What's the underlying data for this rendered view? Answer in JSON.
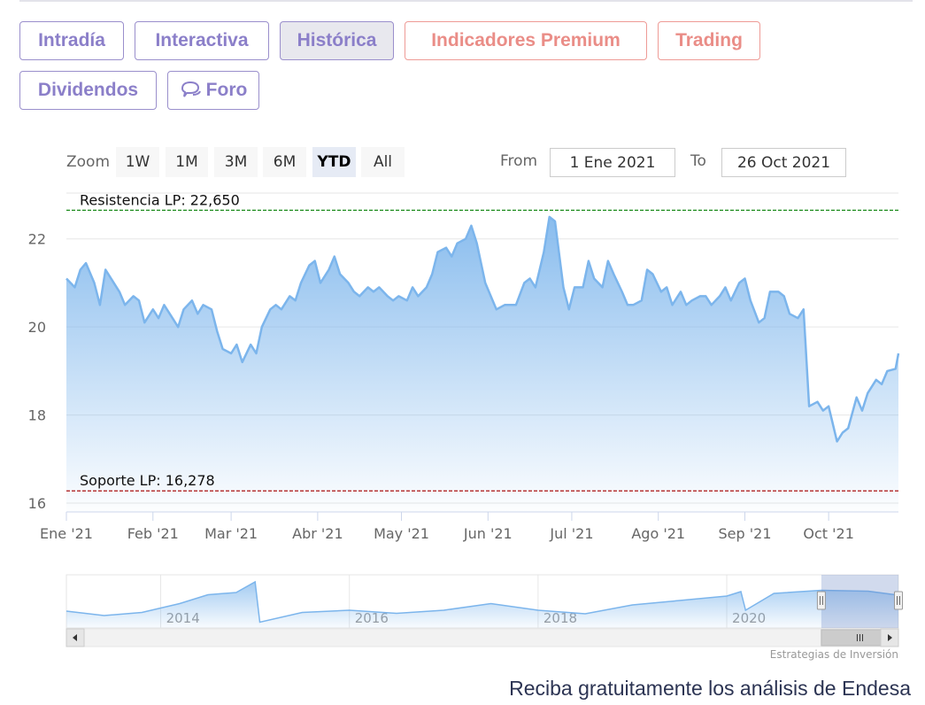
{
  "tabs": {
    "intradia": "Intradía",
    "interactiva": "Interactiva",
    "historica": "Histórica",
    "premium": "Indicadores Premium",
    "trading": "Trading",
    "dividendos": "Dividendos",
    "foro": "Foro"
  },
  "zoom": {
    "label": "Zoom",
    "buttons": [
      "1W",
      "1M",
      "3M",
      "6M",
      "YTD",
      "All"
    ],
    "active": "YTD"
  },
  "range": {
    "from_label": "From",
    "from_value": "1 Ene 2021",
    "to_label": "To",
    "to_value": "26 Oct 2021"
  },
  "credits": "Estrategias de Inversión",
  "footer": "Reciba gratuitamente los análisis de Endesa",
  "colors": {
    "series": "#7cb5ec",
    "resistance": "#1a8a1a",
    "support": "#aa1111",
    "tab_purple": "#8b7fc9",
    "tab_coral": "#ea8d87"
  },
  "chart_data": {
    "type": "area",
    "title": "",
    "xlabel": "",
    "ylabel": "",
    "ylim": [
      15.8,
      23.0
    ],
    "yticks": [
      16,
      18,
      20,
      22
    ],
    "xlim": [
      "2021-01-01",
      "2021-10-26"
    ],
    "xticks": [
      {
        "date": "2021-01-01",
        "label": "Ene '21"
      },
      {
        "date": "2021-02-01",
        "label": "Feb '21"
      },
      {
        "date": "2021-03-01",
        "label": "Mar '21"
      },
      {
        "date": "2021-04-01",
        "label": "Abr '21"
      },
      {
        "date": "2021-05-01",
        "label": "May '21"
      },
      {
        "date": "2021-06-01",
        "label": "Jun '21"
      },
      {
        "date": "2021-07-01",
        "label": "Jul '21"
      },
      {
        "date": "2021-08-01",
        "label": "Ago '21"
      },
      {
        "date": "2021-09-01",
        "label": "Sep '21"
      },
      {
        "date": "2021-10-01",
        "label": "Oct '21"
      }
    ],
    "grid": true,
    "legend": "none",
    "plot_lines": [
      {
        "label": "Resistencia LP: 22,650",
        "value": 22.65,
        "style": "dashed",
        "color": "#1a8a1a"
      },
      {
        "label": "Soporte LP: 16,278",
        "value": 16.278,
        "style": "dashed",
        "color": "#aa1111"
      }
    ],
    "series": [
      {
        "x": [
          "2021-01-01",
          "2021-01-04",
          "2021-01-06",
          "2021-01-08",
          "2021-01-11",
          "2021-01-13",
          "2021-01-15",
          "2021-01-18",
          "2021-01-20",
          "2021-01-22",
          "2021-01-25",
          "2021-01-27",
          "2021-01-29",
          "2021-02-01",
          "2021-02-03",
          "2021-02-05",
          "2021-02-08",
          "2021-02-10",
          "2021-02-12",
          "2021-02-15",
          "2021-02-17",
          "2021-02-19",
          "2021-02-22",
          "2021-02-24",
          "2021-02-26",
          "2021-03-01",
          "2021-03-03",
          "2021-03-05",
          "2021-03-08",
          "2021-03-10",
          "2021-03-12",
          "2021-03-15",
          "2021-03-17",
          "2021-03-19",
          "2021-03-22",
          "2021-03-24",
          "2021-03-26",
          "2021-03-29",
          "2021-03-31",
          "2021-04-02",
          "2021-04-05",
          "2021-04-07",
          "2021-04-09",
          "2021-04-12",
          "2021-04-14",
          "2021-04-16",
          "2021-04-19",
          "2021-04-21",
          "2021-04-23",
          "2021-04-26",
          "2021-04-28",
          "2021-04-30",
          "2021-05-03",
          "2021-05-05",
          "2021-05-07",
          "2021-05-10",
          "2021-05-12",
          "2021-05-14",
          "2021-05-17",
          "2021-05-19",
          "2021-05-21",
          "2021-05-24",
          "2021-05-26",
          "2021-05-28",
          "2021-05-31",
          "2021-06-02",
          "2021-06-04",
          "2021-06-07",
          "2021-06-09",
          "2021-06-11",
          "2021-06-14",
          "2021-06-16",
          "2021-06-18",
          "2021-06-21",
          "2021-06-23",
          "2021-06-25",
          "2021-06-28",
          "2021-06-30",
          "2021-07-02",
          "2021-07-05",
          "2021-07-07",
          "2021-07-09",
          "2021-07-12",
          "2021-07-14",
          "2021-07-16",
          "2021-07-19",
          "2021-07-21",
          "2021-07-23",
          "2021-07-26",
          "2021-07-28",
          "2021-07-30",
          "2021-08-02",
          "2021-08-04",
          "2021-08-06",
          "2021-08-09",
          "2021-08-11",
          "2021-08-13",
          "2021-08-16",
          "2021-08-18",
          "2021-08-20",
          "2021-08-23",
          "2021-08-25",
          "2021-08-27",
          "2021-08-30",
          "2021-09-01",
          "2021-09-03",
          "2021-09-06",
          "2021-09-08",
          "2021-09-10",
          "2021-09-13",
          "2021-09-15",
          "2021-09-17",
          "2021-09-20",
          "2021-09-22",
          "2021-09-24",
          "2021-09-27",
          "2021-09-29",
          "2021-10-01",
          "2021-10-04",
          "2021-10-06",
          "2021-10-08",
          "2021-10-11",
          "2021-10-13",
          "2021-10-15",
          "2021-10-18",
          "2021-10-20",
          "2021-10-22",
          "2021-10-25",
          "2021-10-26"
        ],
        "y": [
          21.1,
          20.9,
          21.3,
          21.45,
          21.0,
          20.5,
          21.3,
          21.0,
          20.8,
          20.5,
          20.7,
          20.6,
          20.1,
          20.4,
          20.2,
          20.5,
          20.2,
          20.0,
          20.4,
          20.6,
          20.3,
          20.5,
          20.4,
          19.9,
          19.5,
          19.4,
          19.6,
          19.2,
          19.6,
          19.4,
          20.0,
          20.4,
          20.5,
          20.4,
          20.7,
          20.6,
          21.0,
          21.4,
          21.5,
          21.0,
          21.3,
          21.6,
          21.2,
          21.0,
          20.8,
          20.7,
          20.9,
          20.8,
          20.9,
          20.7,
          20.6,
          20.7,
          20.6,
          20.9,
          20.7,
          20.9,
          21.2,
          21.7,
          21.8,
          21.6,
          21.9,
          22.0,
          22.3,
          21.9,
          21.0,
          20.7,
          20.4,
          20.5,
          20.5,
          20.5,
          21.0,
          21.1,
          20.9,
          21.7,
          22.5,
          22.4,
          20.9,
          20.4,
          20.9,
          20.9,
          21.5,
          21.1,
          20.9,
          21.5,
          21.2,
          20.8,
          20.5,
          20.5,
          20.6,
          21.3,
          21.2,
          20.8,
          20.9,
          20.5,
          20.8,
          20.5,
          20.6,
          20.7,
          20.7,
          20.5,
          20.7,
          20.9,
          20.6,
          21.0,
          21.1,
          20.6,
          20.1,
          20.2,
          20.8,
          20.8,
          20.7,
          20.3,
          20.2,
          20.4,
          18.2,
          18.3,
          18.1,
          18.2,
          17.4,
          17.6,
          17.7,
          18.4,
          18.1,
          18.5,
          18.8,
          18.7,
          19.0,
          19.05,
          19.4
        ]
      }
    ],
    "navigator": {
      "years": [
        "2014",
        "2016",
        "2018",
        "2020"
      ],
      "x": [
        2013.0,
        2013.4,
        2013.8,
        2014.2,
        2014.5,
        2014.8,
        2015.0,
        2015.05,
        2015.5,
        2016.0,
        2016.5,
        2017.0,
        2017.5,
        2018.0,
        2018.5,
        2019.0,
        2019.5,
        2020.0,
        2020.15,
        2020.2,
        2020.5,
        2021.0,
        2021.5,
        2021.82
      ],
      "y": [
        15.8,
        14.8,
        15.5,
        17.5,
        19.5,
        20.0,
        22.4,
        13.3,
        15.5,
        16.0,
        15.3,
        16.0,
        17.5,
        16.0,
        15.2,
        17.2,
        18.2,
        19.2,
        20.2,
        16.0,
        19.8,
        20.5,
        20.3,
        19.4
      ],
      "selected_range": [
        "2021-01-01",
        "2021-10-26"
      ]
    }
  }
}
